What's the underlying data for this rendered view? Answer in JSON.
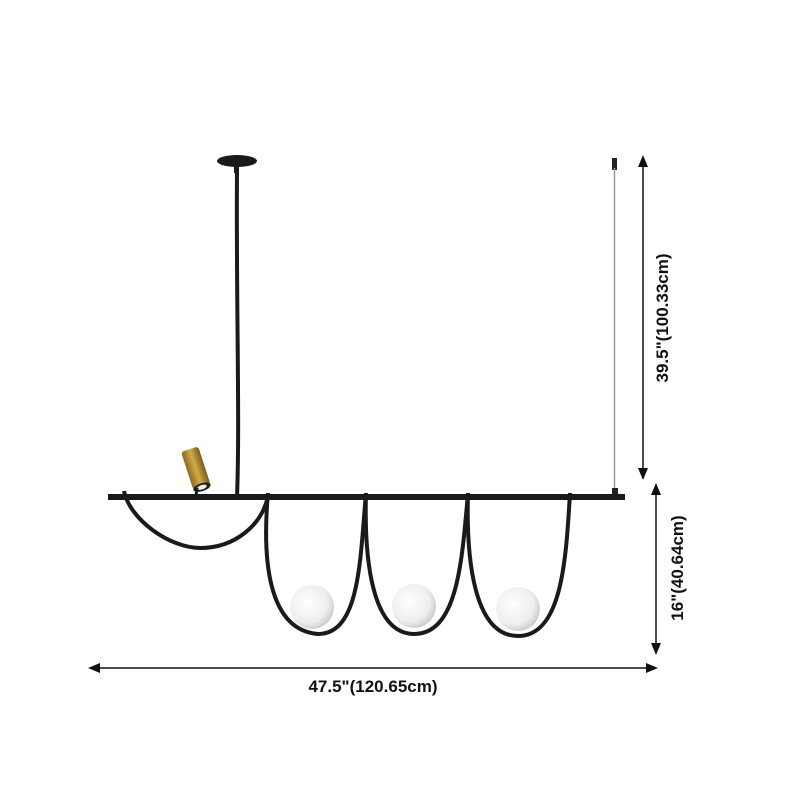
{
  "dimensions": {
    "drop_height": "39.5\"(100.33cm)",
    "fixture_height": "16\"(40.64cm)",
    "width": "47.5\"(120.65cm)"
  }
}
